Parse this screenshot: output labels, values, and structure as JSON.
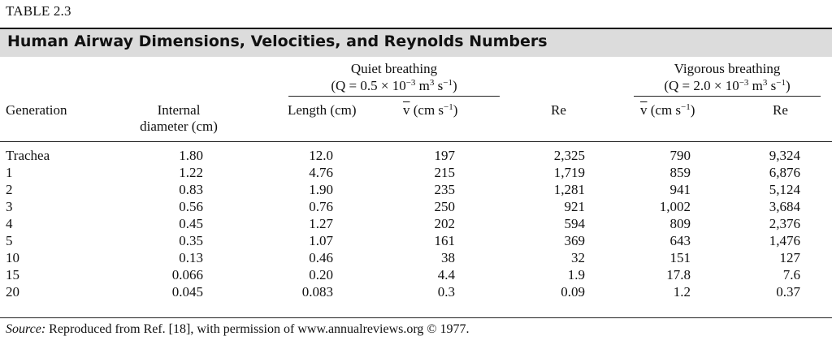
{
  "table_label": "TABLE 2.3",
  "title": "Human Airway Dimensions, Velocities, and Reynolds Numbers",
  "groups": {
    "quiet": {
      "name": "Quiet breathing",
      "formula_a": "(Q = 0.5 × 10",
      "exp": "−3",
      "formula_b": " m",
      "exp2": "3",
      "formula_c": " s",
      "exp3": "−1",
      "formula_d": ")"
    },
    "vigorous": {
      "name": "Vigorous breathing",
      "formula_a": "(Q = 2.0 × 10",
      "exp": "−3",
      "formula_b": " m",
      "exp2": "3",
      "formula_c": " s",
      "exp3": "−1",
      "formula_d": ")"
    }
  },
  "columns": {
    "generation": "Generation",
    "diameter": "Internal diameter (cm)",
    "length": "Length (cm)",
    "v_sym": "v",
    "v_unit": " (cm s",
    "v_exp": "−1",
    "v_close": ")",
    "re": "Re"
  },
  "rows": [
    {
      "generation": "Trachea",
      "diameter": "1.80",
      "length": "12.0",
      "v_quiet": "197",
      "re_quiet": "2,325",
      "v_vig": "790",
      "re_vig": "9,324"
    },
    {
      "generation": "1",
      "diameter": "1.22",
      "length": "4.76",
      "v_quiet": "215",
      "re_quiet": "1,719",
      "v_vig": "859",
      "re_vig": "6,876"
    },
    {
      "generation": "2",
      "diameter": "0.83",
      "length": "1.90",
      "v_quiet": "235",
      "re_quiet": "1,281",
      "v_vig": "941",
      "re_vig": "5,124"
    },
    {
      "generation": "3",
      "diameter": "0.56",
      "length": "0.76",
      "v_quiet": "250",
      "re_quiet": "921",
      "v_vig": "1,002",
      "re_vig": "3,684"
    },
    {
      "generation": "4",
      "diameter": "0.45",
      "length": "1.27",
      "v_quiet": "202",
      "re_quiet": "594",
      "v_vig": "809",
      "re_vig": "2,376"
    },
    {
      "generation": "5",
      "diameter": "0.35",
      "length": "1.07",
      "v_quiet": "161",
      "re_quiet": "369",
      "v_vig": "643",
      "re_vig": "1,476"
    },
    {
      "generation": "10",
      "diameter": "0.13",
      "length": "0.46",
      "v_quiet": "38",
      "re_quiet": "32",
      "v_vig": "151",
      "re_vig": "127"
    },
    {
      "generation": "15",
      "diameter": "0.066",
      "length": "0.20",
      "v_quiet": "4.4",
      "re_quiet": "1.9",
      "v_vig": "17.8",
      "re_vig": "7.6"
    },
    {
      "generation": "20",
      "diameter": "0.045",
      "length": "0.083",
      "v_quiet": "0.3",
      "re_quiet": "0.09",
      "v_vig": "1.2",
      "re_vig": "0.37"
    }
  ],
  "source": {
    "label": "Source:",
    "text": " Reproduced from Ref. [18], with permission of www.annualreviews.org © 1977."
  }
}
